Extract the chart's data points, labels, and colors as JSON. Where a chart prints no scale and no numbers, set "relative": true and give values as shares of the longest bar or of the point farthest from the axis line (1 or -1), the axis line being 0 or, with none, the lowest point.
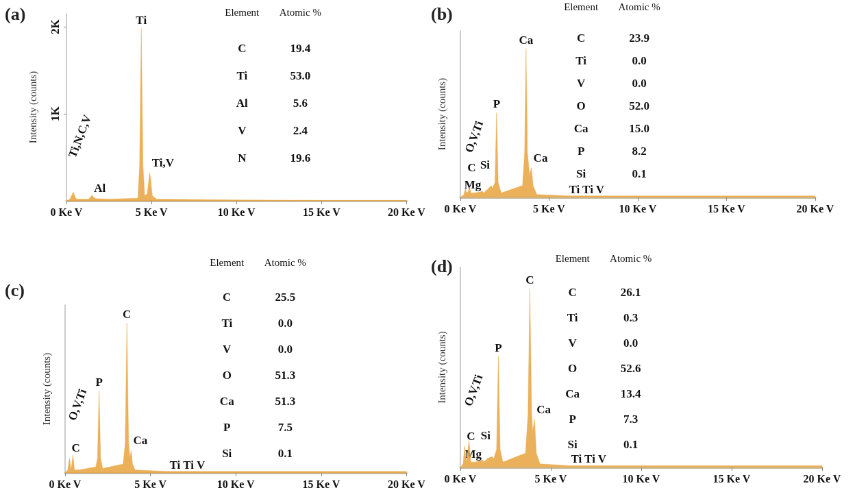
{
  "chart_data": [
    {
      "type": "area",
      "title": "(a)",
      "ylabel": "Intensity (counts)",
      "color": "#e8a33d",
      "x": [
        0,
        0.2,
        0.3,
        0.4,
        0.5,
        0.6,
        1.3,
        1.45,
        1.5,
        1.55,
        1.7,
        2.5,
        4.2,
        4.3,
        4.4,
        4.5,
        4.6,
        4.75,
        4.85,
        4.9,
        4.95,
        5.05,
        5.3,
        10,
        15,
        20
      ],
      "values": [
        0,
        20,
        60,
        100,
        50,
        20,
        20,
        50,
        70,
        50,
        25,
        20,
        30,
        400,
        1980,
        400,
        60,
        80,
        250,
        320,
        250,
        60,
        20,
        10,
        5,
        5
      ],
      "xlim": [
        0,
        20
      ],
      "xticks": [
        {
          "value": 0,
          "label": "0 Ke V"
        },
        {
          "value": 5,
          "label": "5 Ke V"
        },
        {
          "value": 10,
          "label": "10 Ke V"
        },
        {
          "value": 15,
          "label": "15 Ke V"
        },
        {
          "value": 20,
          "label": "20 Ke V"
        }
      ],
      "ylim": [
        0,
        2150
      ],
      "yticks": [
        {
          "value": 1000,
          "label": "1K"
        },
        {
          "value": 2000,
          "label": "2K"
        }
      ],
      "annotations": [
        {
          "text": "Ti",
          "x": 4.4,
          "y": 1980
        },
        {
          "text": "Ti,V",
          "x": 4.9,
          "y": 320
        },
        {
          "text": "Al",
          "x": 1.5,
          "y": 70
        },
        {
          "text": "Ti,N,C,V",
          "x": 0.4,
          "y": 100
        },
        "Element",
        "Atomic %",
        "C",
        "19.4",
        "Ti",
        "53.0",
        "Al",
        "5.6",
        "V",
        "2.4",
        "N",
        "19.6"
      ]
    },
    {
      "type": "area",
      "title": "(b)",
      "ylabel": "Intensity (counts)",
      "color": "#e8a33d",
      "relative": true,
      "x": [
        0,
        0.2,
        0.28,
        0.35,
        0.45,
        0.52,
        0.6,
        0.8,
        1.25,
        1.3,
        1.5,
        1.74,
        1.8,
        1.95,
        2.04,
        2.13,
        2.3,
        3.5,
        3.62,
        3.7,
        3.78,
        3.9,
        4.0,
        4.1,
        4.3,
        6,
        10,
        20
      ],
      "values": [
        0,
        0.02,
        0.06,
        0.03,
        0.04,
        0.07,
        0.03,
        0.03,
        0.04,
        0.03,
        0.05,
        0.08,
        0.06,
        0.1,
        0.57,
        0.1,
        0.03,
        0.08,
        0.3,
        1,
        0.3,
        0.15,
        0.2,
        0.08,
        0.02,
        0.01,
        0.01,
        0.01
      ],
      "xlim": [
        0,
        20
      ],
      "xticks": [
        {
          "value": 0,
          "label": "0 Ke V"
        },
        {
          "value": 5,
          "label": "5 Ke V"
        },
        {
          "value": 10,
          "label": "10 Ke V"
        },
        {
          "value": 15,
          "label": "15 Ke V"
        },
        {
          "value": 20,
          "label": "20 Ke V"
        }
      ],
      "annotations": [
        {
          "text": "Ca",
          "x": 3.7,
          "y": 1
        },
        {
          "text": "P",
          "x": 2.04,
          "y": 0.57
        },
        {
          "text": "Ca",
          "x": 4.0,
          "y": 0.2
        },
        {
          "text": "C",
          "x": 0.28,
          "y": 0.06
        },
        {
          "text": "Mg",
          "x": 1.25,
          "y": 0.04
        },
        {
          "text": "Si",
          "x": 1.74,
          "y": 0.08
        },
        {
          "text": "O,V,Ti",
          "x": 0.52,
          "y": 0.07
        },
        {
          "text": "Ti Ti V",
          "x": 6,
          "y": 0.01
        },
        "Element",
        "Atomic %",
        "C",
        "23.9",
        "Ti",
        "0.0",
        "V",
        "0.0",
        "O",
        "52.0",
        "Ca",
        "15.0",
        "P",
        "8.2",
        "Si",
        "0.1"
      ]
    },
    {
      "type": "area",
      "title": "(c)",
      "ylabel": "Intensity (counts)",
      "color": "#e8a33d",
      "relative": true,
      "x": [
        0,
        0.15,
        0.26,
        0.35,
        0.46,
        0.55,
        0.8,
        1.8,
        1.9,
        1.99,
        2.08,
        2.2,
        3.4,
        3.52,
        3.62,
        3.72,
        3.8,
        3.87,
        3.95,
        4.1,
        6,
        10,
        20
      ],
      "values": [
        0,
        0.02,
        0.1,
        0.02,
        0.12,
        0.02,
        0.02,
        0.04,
        0.1,
        0.55,
        0.1,
        0.03,
        0.06,
        0.2,
        1,
        0.2,
        0.1,
        0.15,
        0.06,
        0.02,
        0.01,
        0.01,
        0.01
      ],
      "xlim": [
        0,
        20
      ],
      "xticks": [
        {
          "value": 0,
          "label": "0 Ke V"
        },
        {
          "value": 5,
          "label": "5 Ke V"
        },
        {
          "value": 10,
          "label": "10 Ke V"
        },
        {
          "value": 15,
          "label": "15 Ke V"
        },
        {
          "value": 20,
          "label": "20 Ke V"
        }
      ],
      "annotations": [
        {
          "text": "C",
          "x": 3.62,
          "y": 1
        },
        {
          "text": "P",
          "x": 1.99,
          "y": 0.55
        },
        {
          "text": "Ca",
          "x": 3.87,
          "y": 0.15
        },
        {
          "text": "C",
          "x": 0.26,
          "y": 0.1
        },
        {
          "text": "O,V,Ti",
          "x": 0.46,
          "y": 0.12
        },
        {
          "text": "Ti Ti V",
          "x": 6,
          "y": 0.01
        },
        "Element",
        "Atomic %",
        "C",
        "25.5",
        "Ti",
        "0.0",
        "V",
        "0.0",
        "O",
        "51.3",
        "Ca",
        "51.3",
        "P",
        "7.5",
        "Si",
        "0.1"
      ]
    },
    {
      "type": "area",
      "title": "(d)",
      "ylabel": "Intensity (counts)",
      "color": "#e8a33d",
      "relative": true,
      "x": [
        0,
        0.15,
        0.24,
        0.33,
        0.48,
        0.58,
        0.8,
        1.25,
        1.3,
        1.5,
        1.74,
        1.85,
        2.0,
        2.1,
        2.2,
        2.35,
        3.6,
        3.74,
        3.84,
        3.94,
        4.0,
        4.1,
        4.2,
        4.4,
        6,
        10,
        20
      ],
      "values": [
        0,
        0.02,
        0.12,
        0.03,
        0.15,
        0.03,
        0.03,
        0.04,
        0.03,
        0.05,
        0.06,
        0.05,
        0.1,
        0.62,
        0.1,
        0.03,
        0.08,
        0.3,
        1,
        0.3,
        0.2,
        0.27,
        0.08,
        0.02,
        0.01,
        0.01,
        0.01
      ],
      "xlim": [
        0,
        20
      ],
      "xticks": [
        {
          "value": 0,
          "label": "0 Ke V"
        },
        {
          "value": 5,
          "label": "5 Ke V"
        },
        {
          "value": 10,
          "label": "10 Ke V"
        },
        {
          "value": 15,
          "label": "15 Ke V"
        },
        {
          "value": 20,
          "label": "20 Ke V"
        }
      ],
      "annotations": [
        {
          "text": "C",
          "x": 3.84,
          "y": 1
        },
        {
          "text": "P",
          "x": 2.1,
          "y": 0.62
        },
        {
          "text": "Ca",
          "x": 4.1,
          "y": 0.27
        },
        {
          "text": "C",
          "x": 0.24,
          "y": 0.12
        },
        {
          "text": "Mg",
          "x": 1.25,
          "y": 0.04
        },
        {
          "text": "Si",
          "x": 1.74,
          "y": 0.06
        },
        {
          "text": "O,V,Ti",
          "x": 0.48,
          "y": 0.15
        },
        {
          "text": "Ti Ti V",
          "x": 6,
          "y": 0.01
        },
        "Element",
        "Atomic %",
        "C",
        "26.1",
        "Ti",
        "0.3",
        "V",
        "0.0",
        "O",
        "52.6",
        "Ca",
        "13.4",
        "P",
        "7.3",
        "Si",
        "0.1"
      ]
    }
  ]
}
